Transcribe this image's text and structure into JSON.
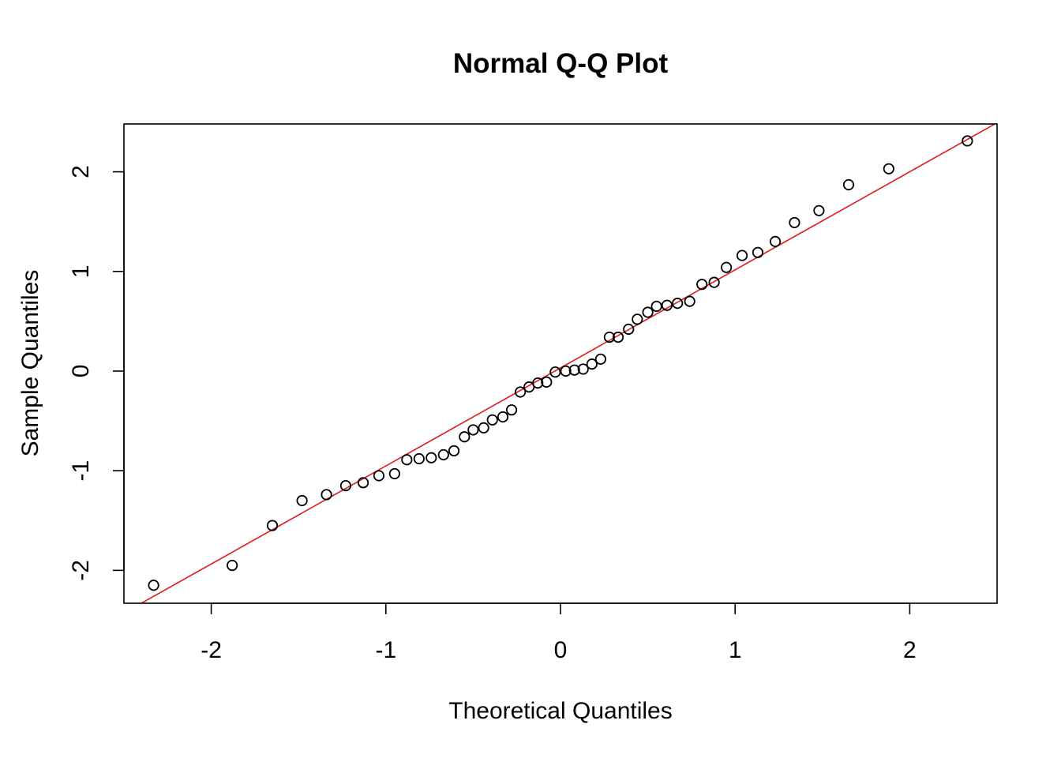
{
  "chart_data": {
    "type": "scatter",
    "title": "Normal Q-Q Plot",
    "xlabel": "Theoretical Quantiles",
    "ylabel": "Sample Quantiles",
    "xlim": [
      -2.5,
      2.5
    ],
    "ylim": [
      -2.33,
      2.48
    ],
    "x_ticks": [
      -2,
      -1,
      0,
      1,
      2
    ],
    "x_tick_labels": [
      "-2",
      "-1",
      "0",
      "1",
      "2"
    ],
    "y_ticks": [
      -2,
      -1,
      0,
      1,
      2
    ],
    "y_tick_labels": [
      "-2",
      "-1",
      "0",
      "1",
      "2"
    ],
    "grid": false,
    "legend": "none",
    "points_color": "#000000",
    "reference_line": {
      "color": "#e31a1c",
      "intercept": 0.032,
      "slope": 0.984
    },
    "points": [
      {
        "x": -2.33,
        "y": -2.15
      },
      {
        "x": -1.88,
        "y": -1.95
      },
      {
        "x": -1.65,
        "y": -1.55
      },
      {
        "x": -1.48,
        "y": -1.3
      },
      {
        "x": -1.34,
        "y": -1.24
      },
      {
        "x": -1.23,
        "y": -1.15
      },
      {
        "x": -1.13,
        "y": -1.12
      },
      {
        "x": -1.04,
        "y": -1.05
      },
      {
        "x": -0.95,
        "y": -1.03
      },
      {
        "x": -0.88,
        "y": -0.89
      },
      {
        "x": -0.81,
        "y": -0.88
      },
      {
        "x": -0.74,
        "y": -0.87
      },
      {
        "x": -0.67,
        "y": -0.84
      },
      {
        "x": -0.61,
        "y": -0.8
      },
      {
        "x": -0.55,
        "y": -0.66
      },
      {
        "x": -0.5,
        "y": -0.59
      },
      {
        "x": -0.44,
        "y": -0.57
      },
      {
        "x": -0.39,
        "y": -0.49
      },
      {
        "x": -0.33,
        "y": -0.46
      },
      {
        "x": -0.28,
        "y": -0.39
      },
      {
        "x": -0.23,
        "y": -0.21
      },
      {
        "x": -0.18,
        "y": -0.16
      },
      {
        "x": -0.13,
        "y": -0.12
      },
      {
        "x": -0.08,
        "y": -0.11
      },
      {
        "x": -0.03,
        "y": -0.01
      },
      {
        "x": 0.03,
        "y": 0.0
      },
      {
        "x": 0.08,
        "y": 0.01
      },
      {
        "x": 0.13,
        "y": 0.02
      },
      {
        "x": 0.18,
        "y": 0.07
      },
      {
        "x": 0.23,
        "y": 0.12
      },
      {
        "x": 0.28,
        "y": 0.34
      },
      {
        "x": 0.33,
        "y": 0.34
      },
      {
        "x": 0.39,
        "y": 0.42
      },
      {
        "x": 0.44,
        "y": 0.52
      },
      {
        "x": 0.5,
        "y": 0.59
      },
      {
        "x": 0.55,
        "y": 0.65
      },
      {
        "x": 0.61,
        "y": 0.66
      },
      {
        "x": 0.67,
        "y": 0.68
      },
      {
        "x": 0.74,
        "y": 0.7
      },
      {
        "x": 0.81,
        "y": 0.87
      },
      {
        "x": 0.88,
        "y": 0.89
      },
      {
        "x": 0.95,
        "y": 1.04
      },
      {
        "x": 1.04,
        "y": 1.16
      },
      {
        "x": 1.13,
        "y": 1.19
      },
      {
        "x": 1.23,
        "y": 1.3
      },
      {
        "x": 1.34,
        "y": 1.49
      },
      {
        "x": 1.48,
        "y": 1.61
      },
      {
        "x": 1.65,
        "y": 1.87
      },
      {
        "x": 1.88,
        "y": 2.03
      },
      {
        "x": 2.33,
        "y": 2.31
      }
    ]
  }
}
